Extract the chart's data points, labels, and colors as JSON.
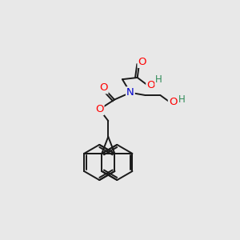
{
  "bg_color": "#e8e8e8",
  "atom_colors": {
    "O": "#ff0000",
    "N": "#0000cc",
    "C": "#000000",
    "H": "#2e8b57"
  },
  "bond_color": "#1a1a1a",
  "bond_width": 1.4,
  "fig_size": [
    3.0,
    3.0
  ],
  "dpi": 100
}
